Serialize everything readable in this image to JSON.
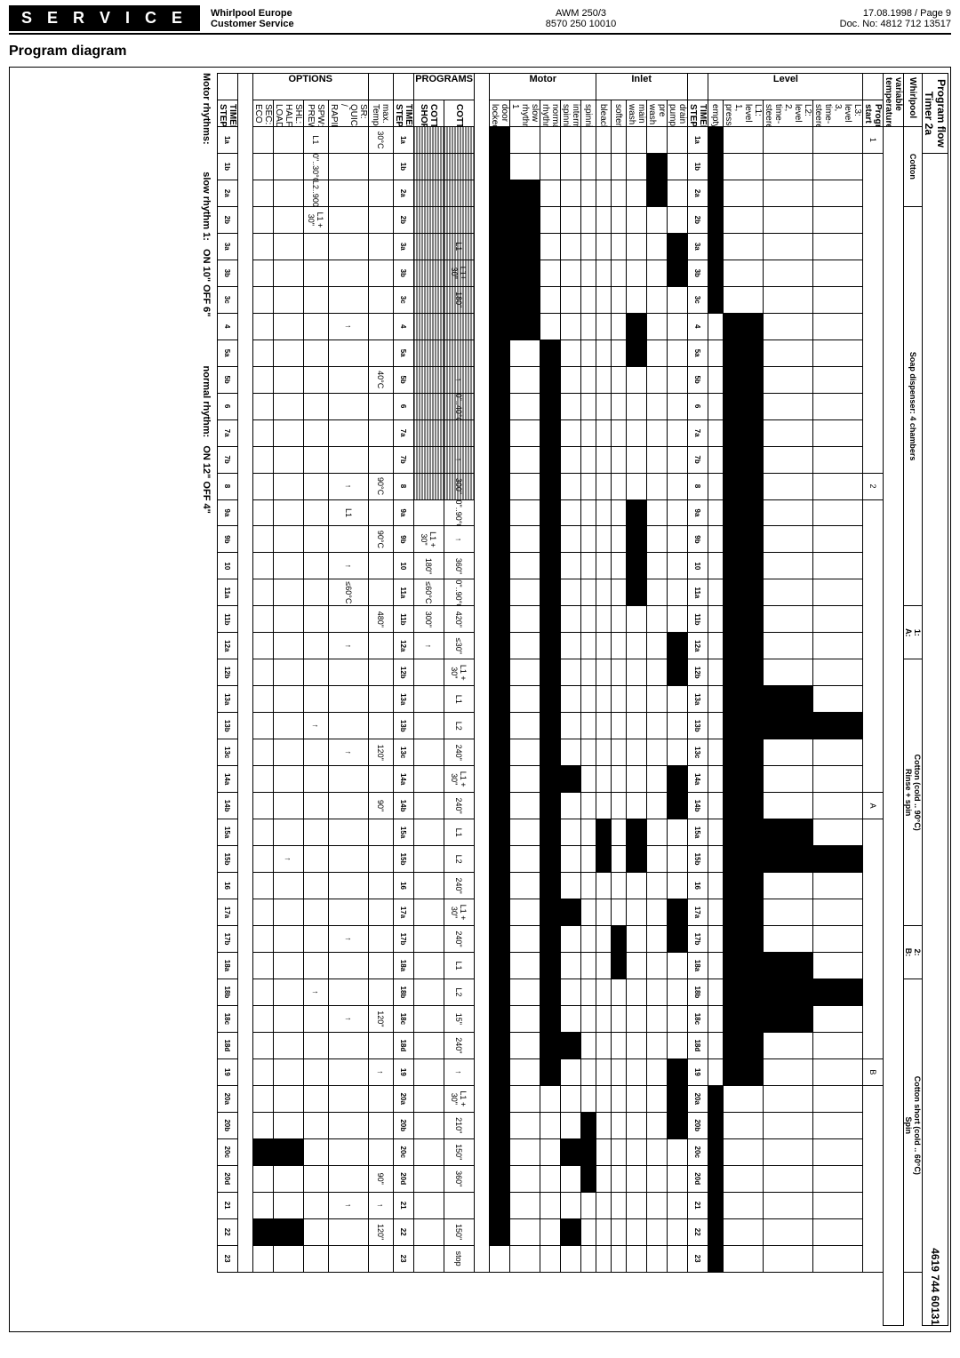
{
  "header": {
    "service": "S E R V I C E",
    "left1": "Whirlpool Europe",
    "left2": "Customer Service",
    "mid1": "AWM 250/3",
    "mid2": "8570 250 10010",
    "right1": "17.08.1998 / Page 9",
    "right2": "Doc. No: 4812 712 13517",
    "title": "Program diagram"
  },
  "box": {
    "title_l": "Program flow Timer 2a",
    "title_r": "4619 744 60131",
    "l1": "Whirlpool",
    "l2": "variable temperatures",
    "c1": "Cotton",
    "c2": "Soap dispenser: 4 chambers",
    "c3": "1:",
    "c3b": "A:",
    "c4": "Cotton (cold .. 90°C)",
    "c5": "Rinse + spin",
    "c6": "2:",
    "c6b": "B:",
    "c7": "Cotton short (cold .. 60°C)",
    "c8": "Spin"
  },
  "row_labels": {
    "program_start": "Program start",
    "level": [
      "L3: level 3, time-steered",
      "L2: level 2, time-steered",
      "L1: level 1, pressostat",
      "empty"
    ],
    "level_side": "Level",
    "timer_step": "TIMER STEP",
    "inlet": [
      "drain pump",
      "pre wash",
      "main wash",
      "softener",
      "bleach"
    ],
    "inlet_side": "Inlet",
    "motor": [
      "spinning",
      "intermediate spinning",
      "normal rhythm",
      "slow rhythm 1",
      "door locked"
    ],
    "motor_side": "Motor",
    "programs": [
      "COTTON",
      "COTTON SHORT"
    ],
    "programs_side": "PROGRAMS",
    "timer_step2": "TIMER STEP",
    "max_temp": "max. Temperature",
    "options": [
      "SR: QUICK / RAPID",
      "SPW: PREWASH",
      "SHL: HALF LOAD",
      "SEC: ECO"
    ],
    "options_side": "OPTIONS",
    "timer_step3": "TIMER STEP"
  },
  "steps": [
    "1a",
    "1b",
    "2a",
    "2b",
    "3a",
    "3b",
    "3c",
    "4",
    "5a",
    "5b",
    "6",
    "7a",
    "7b",
    "8",
    "9a",
    "9b",
    "10",
    "11a",
    "11b",
    "12a",
    "12b",
    "13a",
    "13b",
    "13c",
    "14a",
    "14b",
    "15a",
    "15b",
    "16",
    "17a",
    "17b",
    "18a",
    "18b",
    "18c",
    "18d",
    "19",
    "20a",
    "20b",
    "20c",
    "20d",
    "21",
    "22",
    "23"
  ],
  "cotton_vals": [
    "",
    "",
    "",
    "",
    "L1",
    "L1+ 30\"",
    "180\"",
    "",
    "",
    "↑",
    "0\"..40°C",
    "",
    "↑",
    "300\"",
    "0\"..90°C",
    "↑",
    "360\"",
    "0\"..90°C",
    "420\"",
    "≤30\"",
    "L1 + 30\"",
    "L1",
    "L2",
    "240\"",
    "L1 + 30\"",
    "240\"",
    "L1",
    "L2",
    "240\"",
    "L1 + 30\"",
    "240\"",
    "L1",
    "L2",
    "15\"",
    "240\"",
    "↑",
    "L1 + 30\"",
    "210\"",
    "150\"",
    "360\"",
    "",
    "150\"",
    "stop"
  ],
  "short_vals": [
    "",
    "",
    "",
    "",
    "",
    "",
    "",
    "",
    "",
    "",
    "",
    "",
    "",
    "",
    "",
    "L1 + 30\"",
    "180\"",
    "≤60°C",
    "300\"",
    "↑",
    "",
    "",
    "",
    "",
    "",
    "",
    "",
    "",
    "",
    "",
    "",
    "",
    "",
    "",
    "",
    "",
    "",
    "",
    "",
    "",
    "",
    "",
    ""
  ],
  "maxtemp": [
    "30°C",
    "",
    "",
    "",
    "",
    "",
    "",
    "",
    "",
    "40°C",
    "",
    "",
    "",
    "90°C",
    "",
    "90°C",
    "",
    "",
    "480\"",
    "",
    "",
    "",
    "",
    "120\"",
    "",
    "90\"",
    "",
    "",
    "",
    "",
    "",
    "",
    "",
    "120\"",
    "",
    "↑",
    "",
    "",
    "",
    "90\"",
    "↑",
    "120\"",
    ""
  ],
  "quick": [
    "",
    "",
    "",
    "",
    "",
    "",
    "",
    "↑",
    "",
    "",
    "",
    "",
    "",
    "↑",
    "L1",
    "",
    "↑",
    "≤60°C",
    "",
    "↑",
    "",
    "",
    "",
    "↑",
    "",
    "",
    "",
    "",
    "",
    "",
    "↑",
    "",
    "",
    "↑",
    "",
    "",
    "",
    "",
    "",
    "",
    "↑",
    "",
    ""
  ],
  "prewash": [
    "L1",
    "0\"..30°C",
    "L2..900\"",
    "L1 + 30\"",
    "",
    "",
    "",
    "",
    "",
    "",
    "",
    "",
    "",
    "",
    "",
    "",
    "",
    "",
    "",
    "",
    "",
    "",
    "↑",
    "",
    "",
    "",
    "",
    "",
    "",
    "",
    "",
    "",
    "↑",
    "",
    "",
    "",
    "",
    "",
    "",
    "",
    "",
    "",
    ""
  ],
  "halfload": [
    "",
    "",
    "",
    "",
    "",
    "",
    "",
    "",
    "",
    "",
    "",
    "",
    "",
    "",
    "",
    "",
    "",
    "",
    "",
    "",
    "",
    "",
    "",
    "",
    "",
    "",
    "",
    "↑",
    "",
    "",
    "",
    "",
    "",
    "",
    "",
    "",
    "",
    "",
    "",
    "",
    "",
    "",
    ""
  ],
  "eco": [
    "",
    "",
    "",
    "",
    "",
    "",
    "",
    "",
    "",
    "",
    "",
    "",
    "",
    "",
    "",
    "",
    "",
    "",
    "",
    "",
    "",
    "",
    "",
    "",
    "",
    "",
    "",
    "",
    "",
    "",
    "",
    "",
    "",
    "",
    "",
    "",
    "",
    "",
    "",
    "",
    "",
    "",
    ""
  ],
  "level_chambers": [
    "1",
    "2",
    "A",
    "B"
  ],
  "footer": {
    "motor": "Motor rhythms:",
    "slow": "slow rhythm 1:",
    "slow_v": "ON 10\"   OFF 6\"",
    "norm": "normal rhythm:",
    "norm_v": "ON 12\"   OFF 4\""
  }
}
